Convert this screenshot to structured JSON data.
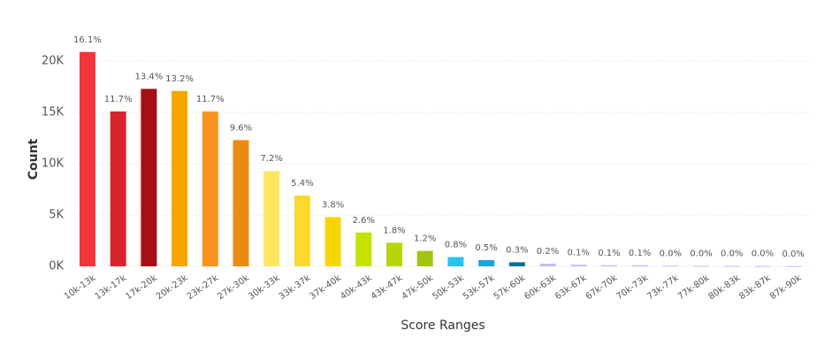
{
  "chart_data": {
    "type": "bar",
    "x_label": "Score Ranges",
    "y_label": "Count",
    "categories": [
      "10k-13k",
      "13k-17k",
      "17k-20k",
      "20k-23k",
      "23k-27k",
      "27k-30k",
      "30k-33k",
      "33k-37k",
      "37k-40k",
      "40k-43k",
      "43k-47k",
      "47k-50k",
      "50k-53k",
      "53k-57k",
      "57k-60k",
      "60k-63k",
      "63k-67k",
      "67k-70k",
      "70k-73k",
      "73k-77k",
      "77k-80k",
      "80k-83k",
      "83k-87k",
      "87k-90k"
    ],
    "values": [
      20900,
      15100,
      17300,
      17100,
      15100,
      12300,
      9300,
      6900,
      4800,
      3300,
      2300,
      1500,
      900,
      600,
      400,
      250,
      150,
      100,
      100,
      60,
      50,
      40,
      30,
      20
    ],
    "percent_labels": [
      "16.1%",
      "11.7%",
      "13.4%",
      "13.2%",
      "11.7%",
      "9.6%",
      "7.2%",
      "5.4%",
      "3.8%",
      "2.6%",
      "1.8%",
      "1.2%",
      "0.8%",
      "0.5%",
      "0.3%",
      "0.2%",
      "0.1%",
      "0.1%",
      "0.1%",
      "0.0%",
      "0.0%",
      "0.0%",
      "0.0%",
      "0.0%"
    ],
    "colors": [
      "#f2353b",
      "#d6252b",
      "#a50f15",
      "#f5a500",
      "#f7941d",
      "#ec8a10",
      "#ffe661",
      "#fcd92e",
      "#f6d600",
      "#c6e000",
      "#b8d40a",
      "#a3c40f",
      "#27c4f2",
      "#1aa4da",
      "#0c6f94",
      "#c9b8f0",
      "#c9b8f0",
      "#c9b8f0",
      "#c9b8f0",
      "#c9b8f0",
      "#c9b8f0",
      "#c9b8f0",
      "#c9b8f0",
      "#c9b8f0"
    ],
    "ylim": [
      0,
      22000
    ],
    "yticks": [
      {
        "value": 0,
        "label": "0K"
      },
      {
        "value": 5000,
        "label": "5K"
      },
      {
        "value": 10000,
        "label": "10K"
      },
      {
        "value": 15000,
        "label": "15K"
      },
      {
        "value": 20000,
        "label": "20K"
      }
    ],
    "grid": true
  }
}
